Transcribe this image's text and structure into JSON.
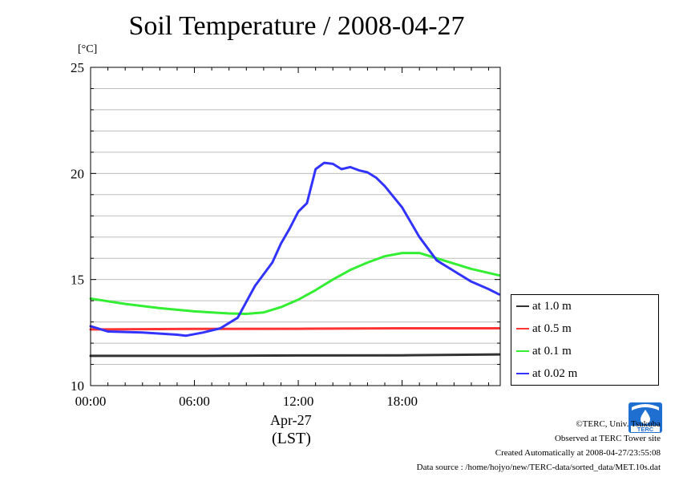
{
  "title": "Soil Temperature / 2008-04-27",
  "unit_label": "[°C]",
  "date_label": "Apr-27",
  "timezone_label": "(LST)",
  "credits": {
    "copyright": "©TERC, Univ. Tsukuba",
    "site": "Observed at TERC Tower site",
    "created": "Created Automatically at 2008-04-27/23:55:08",
    "source": "Data source : /home/hojyo/new/TERC-data/sorted_data/MET.10s.dat"
  },
  "logo": {
    "name": "TERC logo",
    "text": "TERC",
    "color": "#1f6fd1"
  },
  "chart_data": {
    "type": "line",
    "title": "Soil Temperature / 2008-04-27",
    "ylabel": "[°C]",
    "xlabel": "(LST)",
    "xlim": [
      0,
      23.67
    ],
    "ylim": [
      10,
      25
    ],
    "x_ticks": [
      0,
      6,
      12,
      18
    ],
    "x_tick_labels": [
      "00:00",
      "06:00",
      "12:00",
      "18:00"
    ],
    "y_ticks": [
      10,
      15,
      20,
      25
    ],
    "y_tick_labels": [
      "10",
      "15",
      "20",
      "25"
    ],
    "grid": true,
    "legend_position": "right",
    "series": [
      {
        "name": "at 1.0 m",
        "color": "#333333",
        "x": [
          0,
          6,
          12,
          18,
          23.6
        ],
        "y": [
          11.4,
          11.4,
          11.42,
          11.43,
          11.47
        ]
      },
      {
        "name": "at 0.5 m",
        "color": "#ff3333",
        "x": [
          0,
          6,
          12,
          18,
          23.6
        ],
        "y": [
          12.65,
          12.67,
          12.68,
          12.7,
          12.7
        ]
      },
      {
        "name": "at 0.1 m",
        "color": "#33ee33",
        "x": [
          0,
          2,
          4,
          6,
          8,
          9,
          10,
          11,
          12,
          13,
          14,
          15,
          16,
          17,
          18,
          19,
          20,
          21,
          22,
          23.6
        ],
        "y": [
          14.1,
          13.85,
          13.65,
          13.5,
          13.4,
          13.38,
          13.45,
          13.7,
          14.05,
          14.5,
          15.0,
          15.45,
          15.8,
          16.1,
          16.25,
          16.25,
          16.0,
          15.75,
          15.5,
          15.2
        ]
      },
      {
        "name": "at 0.02 m",
        "color": "#3333ff",
        "x": [
          0,
          1,
          3,
          5,
          5.5,
          6.5,
          7.5,
          8.5,
          9.5,
          10.5,
          11,
          11.5,
          12,
          12.5,
          13,
          13.5,
          14,
          14.5,
          15,
          15.5,
          16,
          16.5,
          17,
          18,
          19,
          20,
          21,
          22,
          23,
          23.6
        ],
        "y": [
          12.8,
          12.55,
          12.5,
          12.4,
          12.35,
          12.5,
          12.7,
          13.2,
          14.7,
          15.8,
          16.7,
          17.4,
          18.2,
          18.6,
          20.2,
          20.5,
          20.45,
          20.2,
          20.3,
          20.15,
          20.05,
          19.8,
          19.4,
          18.4,
          17.0,
          15.9,
          15.4,
          14.9,
          14.55,
          14.3
        ]
      }
    ]
  }
}
